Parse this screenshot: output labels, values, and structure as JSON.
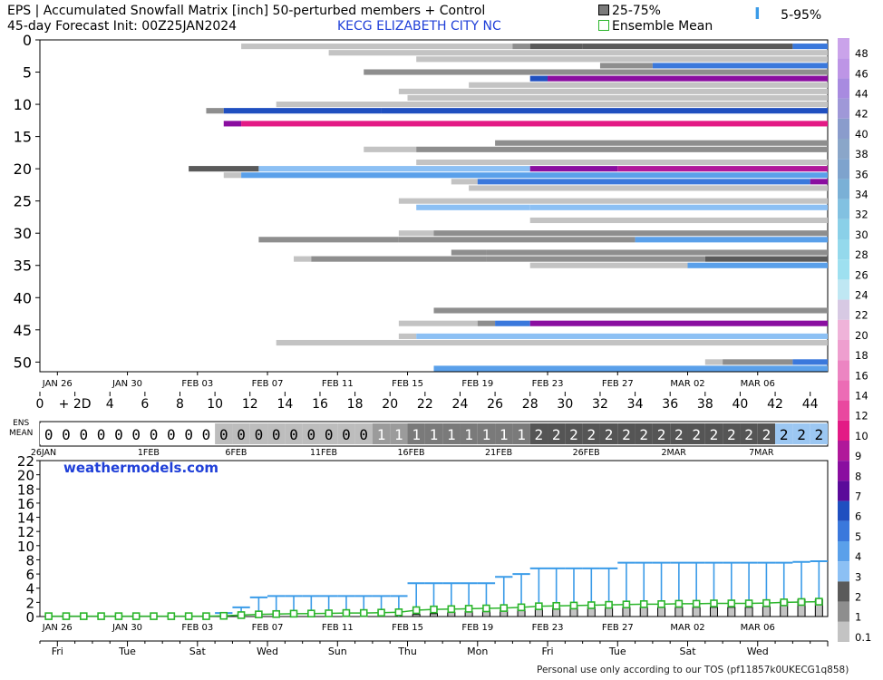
{
  "header": {
    "title_line1": "EPS | Accumulated Snowfall Matrix [inch]  50-perturbed members + Control",
    "title_line2": "45-day Forecast Init: 00Z25JAN2024",
    "station": "KECG  ELIZABETH CITY NC",
    "legend_box": "25-75%",
    "legend_mean": "Ensemble Mean",
    "legend_whisker": "5-95%",
    "ens_label": "ENS\nMEAN",
    "brand": "weathermodels.com",
    "tos": "Personal use only according to our TOS (pf11857k0UKECG1q858)"
  },
  "colors": {
    "mean_line": "#2bb52b",
    "whisker": "#3a9be8",
    "grid": "#d9d9d9"
  },
  "chart_data": [
    {
      "type": "heatmap",
      "name": "member-matrix",
      "ylabel_ticks": [
        "0",
        "5",
        "10",
        "15",
        "20",
        "25",
        "30",
        "35",
        "40",
        "45",
        "50"
      ],
      "x_ticks": [
        "JAN 26",
        "JAN 30",
        "FEB 03",
        "FEB 07",
        "FEB 11",
        "FEB 15",
        "FEB 19",
        "FEB 23",
        "FEB 27",
        "MAR 02",
        "MAR 06"
      ],
      "x_tick_days": [
        1,
        5,
        9,
        13,
        17,
        21,
        25,
        29,
        33,
        37,
        41
      ],
      "members": [
        {
          "m": 1,
          "segs": [
            [
              11.5,
              27,
              0.5
            ],
            [
              27,
              28,
              1.5
            ],
            [
              28,
              31,
              2
            ],
            [
              31,
              43,
              2.5
            ],
            [
              43,
              45,
              5
            ]
          ]
        },
        {
          "m": 2,
          "segs": [
            [
              16.5,
              45,
              0.5
            ]
          ]
        },
        {
          "m": 3,
          "segs": [
            [
              21.5,
              45,
              0.5
            ]
          ]
        },
        {
          "m": 4,
          "segs": [
            [
              32,
              35,
              1.5
            ],
            [
              35,
              45,
              5
            ]
          ]
        },
        {
          "m": 5,
          "segs": [
            [
              18.5,
              45,
              1
            ]
          ]
        },
        {
          "m": 6,
          "segs": [
            [
              28,
              29,
              6
            ],
            [
              29,
              45,
              8
            ]
          ]
        },
        {
          "m": 7,
          "segs": [
            [
              24.5,
              45,
              0.5
            ]
          ]
        },
        {
          "m": 8,
          "segs": [
            [
              20.5,
              45,
              0.5
            ]
          ]
        },
        {
          "m": 9,
          "segs": [
            [
              21,
              45,
              0.5
            ]
          ]
        },
        {
          "m": 10,
          "segs": [
            [
              13.5,
              45,
              0.5
            ]
          ]
        },
        {
          "m": 11,
          "segs": [
            [
              9.5,
              10.5,
              1
            ],
            [
              10.5,
              19.5,
              6
            ],
            [
              19.5,
              45,
              6
            ]
          ]
        },
        {
          "m": 13,
          "segs": [
            [
              10.5,
              11.5,
              8
            ],
            [
              11.5,
              45,
              11
            ]
          ]
        },
        {
          "m": 16,
          "segs": [
            [
              26,
              45,
              1
            ]
          ]
        },
        {
          "m": 17,
          "segs": [
            [
              18.5,
              21.5,
              0.5
            ],
            [
              21.5,
              45,
              1
            ]
          ]
        },
        {
          "m": 19,
          "segs": [
            [
              21.5,
              45,
              0.5
            ]
          ]
        },
        {
          "m": 20,
          "segs": [
            [
              8.5,
              12.5,
              2
            ],
            [
              12.5,
              28,
              3
            ],
            [
              28,
              33,
              8
            ],
            [
              33,
              45,
              9
            ]
          ]
        },
        {
          "m": 21,
          "segs": [
            [
              10.5,
              11.5,
              0.5
            ],
            [
              11.5,
              45,
              4
            ]
          ]
        },
        {
          "m": 22,
          "segs": [
            [
              23.5,
              25,
              0.5
            ],
            [
              25,
              44,
              5
            ],
            [
              44,
              45,
              8
            ]
          ]
        },
        {
          "m": 23,
          "segs": [
            [
              24.5,
              45,
              0.5
            ]
          ]
        },
        {
          "m": 25,
          "segs": [
            [
              20.5,
              45,
              0.5
            ]
          ]
        },
        {
          "m": 26,
          "segs": [
            [
              21.5,
              28,
              3
            ],
            [
              28,
              45,
              3
            ]
          ]
        },
        {
          "m": 28,
          "segs": [
            [
              28,
              45,
              0.5
            ]
          ]
        },
        {
          "m": 30,
          "segs": [
            [
              20.5,
              22.5,
              0.5
            ],
            [
              22.5,
              45,
              1
            ]
          ]
        },
        {
          "m": 31,
          "segs": [
            [
              12.5,
              20.5,
              1.5
            ],
            [
              20.5,
              34,
              1.5
            ],
            [
              34,
              45,
              4
            ]
          ]
        },
        {
          "m": 33,
          "segs": [
            [
              23.5,
              25.5,
              1
            ],
            [
              25.5,
              45,
              1.5
            ]
          ]
        },
        {
          "m": 34,
          "segs": [
            [
              14.5,
              15.5,
              0.5
            ],
            [
              15.5,
              25.5,
              1
            ],
            [
              25.5,
              38,
              1.5
            ],
            [
              38,
              45,
              2
            ]
          ]
        },
        {
          "m": 35,
          "segs": [
            [
              28,
              37,
              0.5
            ],
            [
              37,
              45,
              4
            ]
          ]
        },
        {
          "m": 42,
          "segs": [
            [
              22.5,
              45,
              1
            ]
          ]
        },
        {
          "m": 44,
          "segs": [
            [
              20.5,
              25,
              0.5
            ],
            [
              25,
              26,
              1
            ],
            [
              26,
              28,
              5
            ],
            [
              28,
              45,
              8
            ]
          ]
        },
        {
          "m": 46,
          "segs": [
            [
              20.5,
              21.5,
              0.1
            ],
            [
              21.5,
              45,
              3
            ]
          ]
        },
        {
          "m": 47,
          "segs": [
            [
              13.5,
              45,
              0.5
            ]
          ]
        },
        {
          "m": 50,
          "segs": [
            [
              38,
              39,
              0.5
            ],
            [
              39,
              43,
              1.5
            ],
            [
              43,
              45,
              5
            ]
          ]
        },
        {
          "m": 51,
          "segs": [
            [
              22.5,
              45,
              4
            ]
          ]
        }
      ]
    },
    {
      "type": "table",
      "name": "ensemble-mean-strip",
      "x_ticks": [
        "0",
        "+ 2D",
        "4",
        "6",
        "8",
        "10",
        "12",
        "14",
        "16",
        "18",
        "20",
        "22",
        "24",
        "26",
        "28",
        "30",
        "32",
        "34",
        "36",
        "38",
        "40",
        "42",
        "44"
      ],
      "values": [
        0,
        0,
        0,
        0,
        0,
        0,
        0,
        0,
        0,
        0,
        0,
        0,
        0,
        0,
        0,
        0,
        0,
        0,
        0,
        1,
        1,
        1,
        1,
        1,
        1,
        1,
        1,
        1,
        2,
        2,
        2,
        2,
        2,
        2,
        2,
        2,
        2,
        2,
        2,
        2,
        2,
        2,
        2,
        2,
        2
      ],
      "date_labels": [
        "26JAN",
        "1FEB",
        "6FEB",
        "11FEB",
        "16FEB",
        "21FEB",
        "26FEB",
        "2MAR",
        "7MAR"
      ],
      "date_label_days": [
        0,
        6,
        11,
        16,
        21,
        26,
        31,
        36,
        41
      ]
    },
    {
      "type": "line",
      "name": "ensemble-timeseries",
      "ylabel_ticks": [
        "0",
        "2",
        "4",
        "6",
        "8",
        "10",
        "12",
        "14",
        "16",
        "18",
        "20",
        "22"
      ],
      "ylim": [
        0,
        22
      ],
      "x_ticks": [
        "JAN 26",
        "JAN 30",
        "FEB 03",
        "FEB 07",
        "FEB 11",
        "FEB 15",
        "FEB 19",
        "FEB 23",
        "FEB 27",
        "MAR 02",
        "MAR 06"
      ],
      "weekday_ticks": [
        "Fri",
        "Tue",
        "Sat",
        "Wed",
        "Sun",
        "Thu",
        "Mon",
        "Fri",
        "Tue",
        "Sat",
        "Wed"
      ],
      "mean": [
        0.05,
        0.05,
        0.05,
        0.05,
        0.05,
        0.05,
        0.05,
        0.05,
        0.05,
        0.05,
        0.1,
        0.2,
        0.3,
        0.35,
        0.4,
        0.42,
        0.45,
        0.5,
        0.5,
        0.55,
        0.6,
        0.9,
        1.0,
        1.05,
        1.1,
        1.15,
        1.2,
        1.3,
        1.45,
        1.5,
        1.55,
        1.6,
        1.65,
        1.7,
        1.75,
        1.75,
        1.8,
        1.8,
        1.85,
        1.85,
        1.85,
        1.9,
        2.0,
        2.05,
        2.1
      ],
      "p95": [
        0,
        0,
        0,
        0,
        0,
        0,
        0,
        0,
        0,
        0,
        0.5,
        1.3,
        2.7,
        2.9,
        2.9,
        2.9,
        2.9,
        2.9,
        2.9,
        2.9,
        2.9,
        4.7,
        4.7,
        4.7,
        4.7,
        4.7,
        5.6,
        6.0,
        6.8,
        6.8,
        6.8,
        6.8,
        6.8,
        7.6,
        7.6,
        7.6,
        7.6,
        7.6,
        7.6,
        7.6,
        7.6,
        7.6,
        7.6,
        7.7,
        7.8
      ],
      "q75": [
        0,
        0,
        0,
        0,
        0,
        0,
        0,
        0,
        0,
        0,
        0,
        0,
        0,
        0,
        0,
        0,
        0,
        0,
        0,
        0,
        0,
        0.3,
        0.4,
        0.6,
        0.7,
        0.8,
        0.9,
        1.0,
        1.1,
        1.2,
        1.3,
        1.3,
        1.3,
        1.3,
        1.3,
        1.3,
        1.3,
        1.3,
        1.3,
        1.3,
        1.3,
        1.4,
        2.2,
        2.4,
        2.4
      ]
    }
  ],
  "colorbar": {
    "labels": [
      "48",
      "46",
      "44",
      "42",
      "40",
      "38",
      "36",
      "34",
      "32",
      "30",
      "28",
      "26",
      "24",
      "22",
      "20",
      "18",
      "16",
      "14",
      "12",
      "10",
      "9",
      "8",
      "7",
      "6",
      "5",
      "4",
      "3",
      "2",
      "1",
      "0.1"
    ],
    "colors": [
      "#caa3ea",
      "#bd95e6",
      "#a88be0",
      "#9f98d8",
      "#8a9ccc",
      "#8aa6c9",
      "#7ea3cd",
      "#7ab0d6",
      "#82c1e1",
      "#8ad0e8",
      "#94d9ec",
      "#9ee0f0",
      "#bfe7f3",
      "#d7c9e3",
      "#efb3d9",
      "#ee9fcf",
      "#ec85c2",
      "#ec6cb5",
      "#e9489f",
      "#e31a85",
      "#b0189a",
      "#8a0ea0",
      "#5a0a9a",
      "#1f4fc0",
      "#3a78dc",
      "#5aa0ea",
      "#8cc0f4",
      "#5a5a5a",
      "#8e8e8e",
      "#c3c3c3"
    ]
  }
}
